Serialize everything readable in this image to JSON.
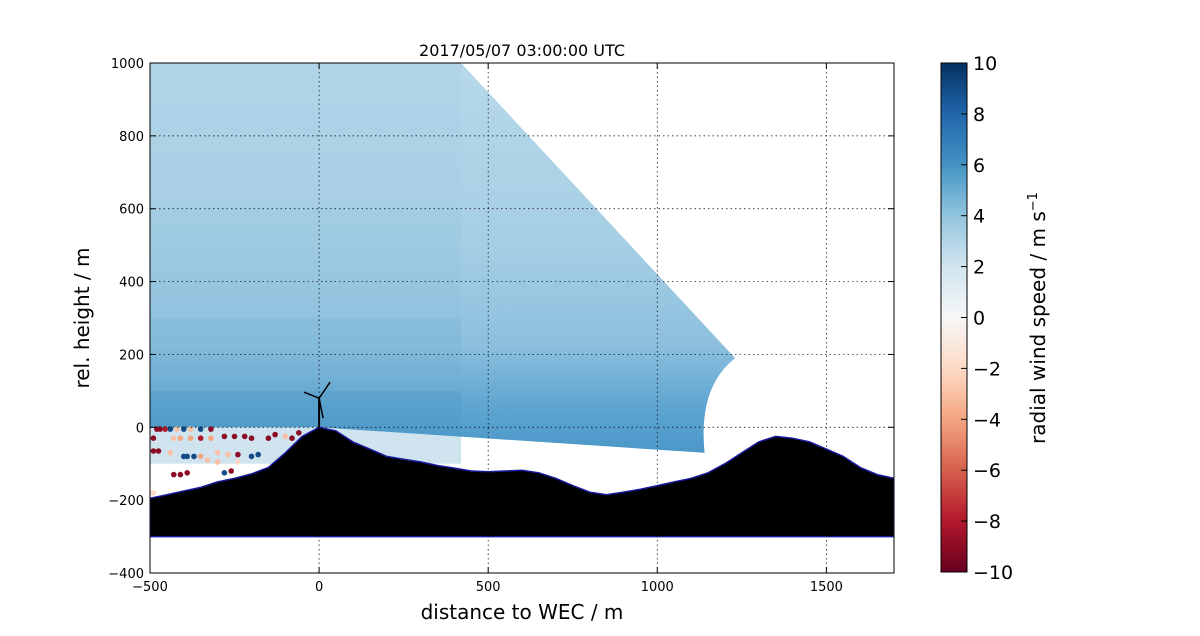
{
  "chart_data": {
    "type": "heatmap",
    "title": "2017/05/07 03:00:00 UTC",
    "xlabel": "distance to WEC / m",
    "ylabel": "rel. height / m",
    "xlim": [
      -500,
      1700
    ],
    "ylim": [
      -400,
      1000
    ],
    "xticks": [
      -500,
      0,
      500,
      1000,
      1500
    ],
    "yticks": [
      -400,
      -200,
      0,
      200,
      400,
      600,
      800,
      1000
    ],
    "grid": "dotted",
    "colorbar": {
      "label": "radial wind speed / m s",
      "label_superscript": "−1",
      "range": [
        -10,
        10
      ],
      "ticks": [
        -10,
        -8,
        -6,
        -4,
        -2,
        0,
        2,
        4,
        6,
        8,
        10
      ],
      "colormap": [
        "#67001f",
        "#b2182b",
        "#d6604d",
        "#f4a582",
        "#fddbc7",
        "#f7f7f7",
        "#d1e5f0",
        "#92c5de",
        "#4393c3",
        "#2166ac",
        "#053061"
      ]
    },
    "terrain_profile": {
      "x": [
        -500,
        -450,
        -400,
        -350,
        -300,
        -250,
        -200,
        -150,
        -100,
        -50,
        0,
        50,
        100,
        150,
        200,
        250,
        300,
        350,
        400,
        450,
        500,
        550,
        600,
        650,
        700,
        750,
        800,
        850,
        900,
        950,
        1000,
        1050,
        1100,
        1150,
        1200,
        1250,
        1300,
        1350,
        1400,
        1450,
        1500,
        1550,
        1600,
        1650,
        1700
      ],
      "y": [
        -195,
        -185,
        -175,
        -165,
        -150,
        -140,
        -128,
        -110,
        -70,
        -25,
        0,
        -10,
        -40,
        -60,
        -80,
        -88,
        -95,
        -105,
        -112,
        -120,
        -122,
        -120,
        -118,
        -125,
        -140,
        -160,
        -178,
        -185,
        -178,
        -170,
        -160,
        -150,
        -140,
        -125,
        -100,
        -70,
        -40,
        -25,
        -30,
        -40,
        -60,
        -80,
        -110,
        -130,
        -140
      ],
      "base": -300,
      "color": "#000000"
    },
    "wind_field": {
      "domain_upper_edge": {
        "x": [
          -500,
          420,
          1230
        ],
        "y": [
          1000,
          1000,
          190
        ]
      },
      "domain_lower_edge": {
        "x": [
          -500,
          0,
          1140,
          1140
        ],
        "y": [
          0,
          0,
          -70,
          190
        ]
      },
      "bands": [
        {
          "height_range": [
            600,
            1000
          ],
          "speed": 3.5
        },
        {
          "height_range": [
            300,
            600
          ],
          "speed": 4.2
        },
        {
          "height_range": [
            100,
            300
          ],
          "speed": 5.0
        },
        {
          "height_range": [
            -100,
            100
          ],
          "speed": 6.0
        }
      ]
    },
    "wec": {
      "x": 0,
      "hub_height": 80
    },
    "near_ground_points": [
      {
        "x": -480,
        "y": -5,
        "v": -9
      },
      {
        "x": -470,
        "y": -5,
        "v": -9
      },
      {
        "x": -455,
        "y": -5,
        "v": -8
      },
      {
        "x": -440,
        "y": -5,
        "v": 9
      },
      {
        "x": -420,
        "y": -5,
        "v": -3
      },
      {
        "x": -400,
        "y": -5,
        "v": 9
      },
      {
        "x": -380,
        "y": -5,
        "v": -3
      },
      {
        "x": -350,
        "y": -5,
        "v": 9
      },
      {
        "x": -320,
        "y": -5,
        "v": -9
      },
      {
        "x": -490,
        "y": -30,
        "v": -9
      },
      {
        "x": -430,
        "y": -30,
        "v": -3
      },
      {
        "x": -410,
        "y": -30,
        "v": -4
      },
      {
        "x": -380,
        "y": -30,
        "v": -4
      },
      {
        "x": -350,
        "y": -30,
        "v": -8
      },
      {
        "x": -320,
        "y": -30,
        "v": -4
      },
      {
        "x": -280,
        "y": -25,
        "v": -9
      },
      {
        "x": -250,
        "y": -25,
        "v": -9
      },
      {
        "x": -220,
        "y": -25,
        "v": -9
      },
      {
        "x": -200,
        "y": -30,
        "v": -9
      },
      {
        "x": -150,
        "y": -30,
        "v": -9
      },
      {
        "x": -130,
        "y": -20,
        "v": -9
      },
      {
        "x": -100,
        "y": -25,
        "v": -3
      },
      {
        "x": -80,
        "y": -30,
        "v": -9
      },
      {
        "x": -60,
        "y": -15,
        "v": -9
      },
      {
        "x": -490,
        "y": -65,
        "v": -9
      },
      {
        "x": -475,
        "y": -65,
        "v": -9
      },
      {
        "x": -440,
        "y": -70,
        "v": -3
      },
      {
        "x": -400,
        "y": -80,
        "v": 9
      },
      {
        "x": -390,
        "y": -80,
        "v": 9
      },
      {
        "x": -370,
        "y": -80,
        "v": 9
      },
      {
        "x": -350,
        "y": -80,
        "v": -4
      },
      {
        "x": -300,
        "y": -70,
        "v": -3
      },
      {
        "x": -270,
        "y": -75,
        "v": -3
      },
      {
        "x": -240,
        "y": -75,
        "v": -9
      },
      {
        "x": -200,
        "y": -80,
        "v": 9
      },
      {
        "x": -180,
        "y": -75,
        "v": 9
      },
      {
        "x": -330,
        "y": -90,
        "v": -3
      },
      {
        "x": -300,
        "y": -95,
        "v": -3
      },
      {
        "x": -240,
        "y": -95,
        "v": -2
      },
      {
        "x": -430,
        "y": -130,
        "v": -9
      },
      {
        "x": -410,
        "y": -130,
        "v": -9
      },
      {
        "x": -390,
        "y": -125,
        "v": -9
      },
      {
        "x": -280,
        "y": -125,
        "v": 9
      },
      {
        "x": -260,
        "y": -120,
        "v": -9
      },
      {
        "x": -490,
        "y": -180,
        "v": -2
      }
    ]
  }
}
